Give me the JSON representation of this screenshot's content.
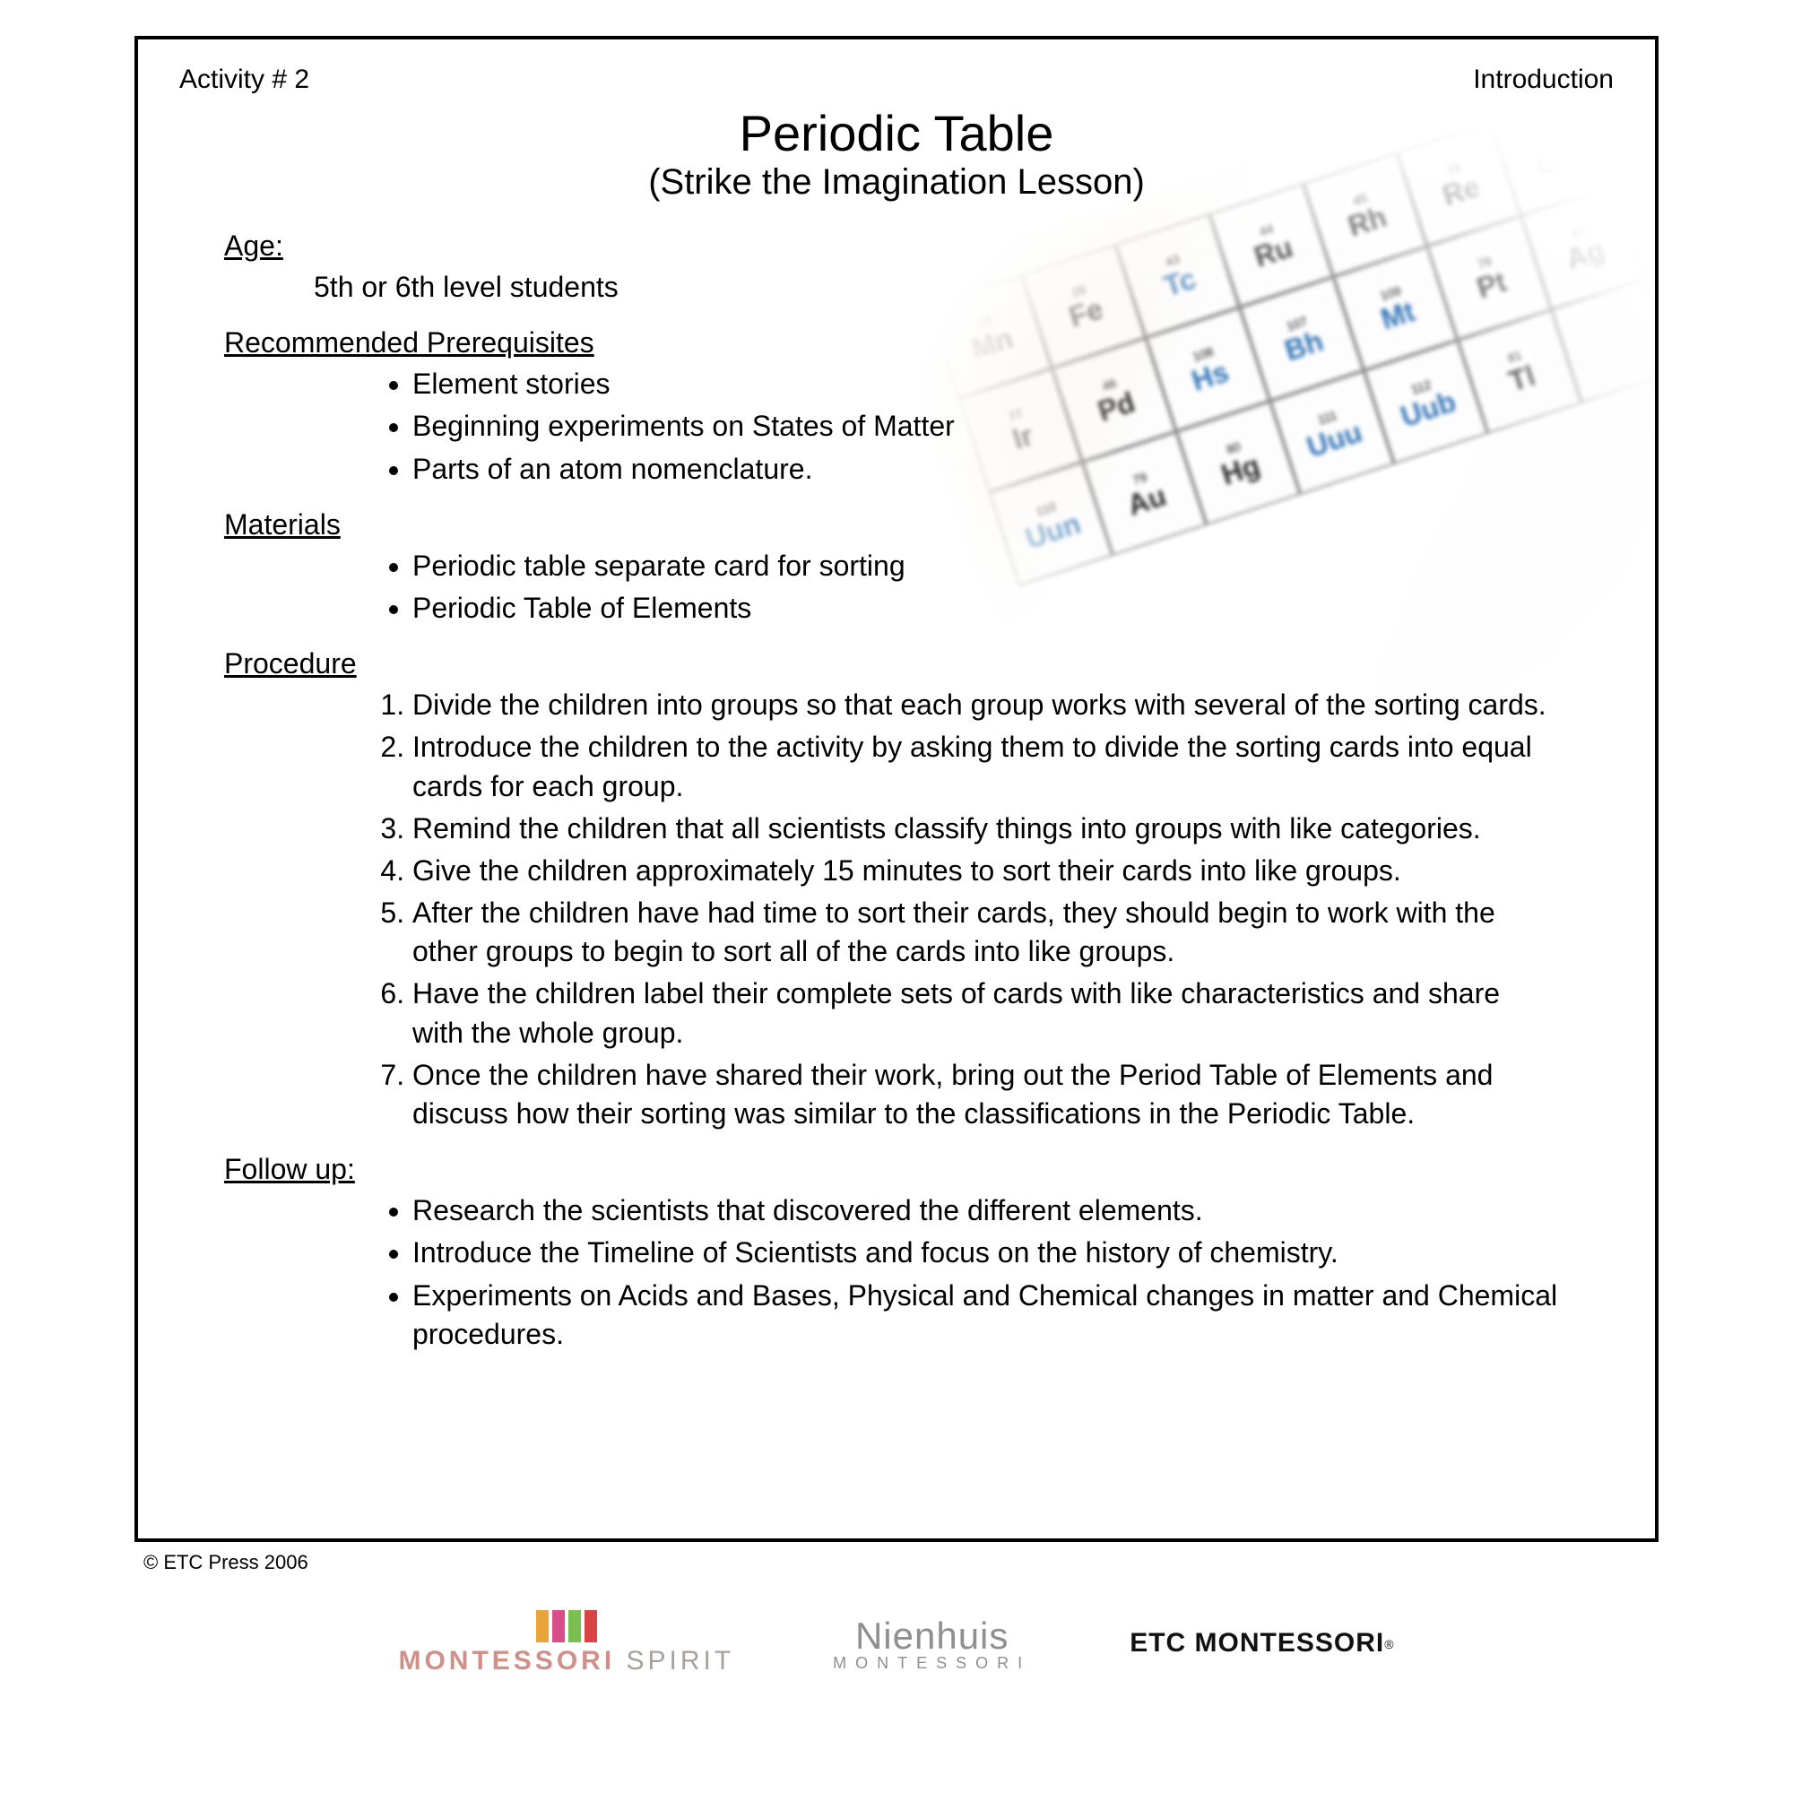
{
  "header": {
    "left": "Activity # 2",
    "right": "Introduction"
  },
  "title": {
    "main": "Periodic Table",
    "sub": "(Strike the Imagination Lesson)"
  },
  "age": {
    "heading": "Age:",
    "text": "5th or 6th level students"
  },
  "prereq": {
    "heading": "Recommended Prerequisites",
    "items": [
      "Element stories",
      "Beginning experiments on States of Matter",
      "Parts of an atom nomenclature."
    ]
  },
  "materials": {
    "heading": "Materials",
    "items": [
      "Periodic table separate card for sorting",
      "Periodic Table of Elements"
    ]
  },
  "procedure": {
    "heading": "Procedure",
    "steps": [
      "Divide the children into groups so that each group works with several of the sorting cards.",
      "Introduce the children to the activity by asking them to divide the sorting cards into equal cards for each group.",
      "Remind the children that all scientists classify things into groups with like categories.",
      "Give the children approximately 15 minutes to sort their cards into like groups.",
      "After the children have had time to sort their cards, they should begin to work with the other groups to begin to sort all of the cards into like groups.",
      "Have the children label their complete sets of cards with like characteristics and share with the whole group.",
      "Once the children have shared their work, bring out the Period Table of Elements and discuss how their sorting was similar to the classifications in the Periodic Table."
    ]
  },
  "followup": {
    "heading": "Follow up:",
    "items": [
      "Research the scientists that discovered the different elements.",
      "Introduce the Timeline of Scientists and focus on the history of chemistry.",
      "Experiments on Acids and Bases, Physical and Chemical changes in matter and Chemical procedures."
    ]
  },
  "copyright": "© ETC Press 2006",
  "illustration": {
    "cells": [
      {
        "num": "25",
        "sym": "Mn",
        "tone": "dark"
      },
      {
        "num": "26",
        "sym": "Fe",
        "tone": "dark"
      },
      {
        "num": "43",
        "sym": "Tc",
        "tone": "blue"
      },
      {
        "num": "44",
        "sym": "Ru",
        "tone": "dark"
      },
      {
        "num": "45",
        "sym": "Rh",
        "tone": "dark"
      },
      {
        "num": "75",
        "sym": "Re",
        "tone": "dark"
      },
      {
        "num": "76",
        "sym": "Os",
        "tone": "dark"
      },
      {
        "num": "77",
        "sym": "Ir",
        "tone": "dark"
      },
      {
        "num": "46",
        "sym": "Pd",
        "tone": "dark"
      },
      {
        "num": "108",
        "sym": "Hs",
        "tone": "blue"
      },
      {
        "num": "107",
        "sym": "Bh",
        "tone": "blue"
      },
      {
        "num": "109",
        "sym": "Mt",
        "tone": "blue"
      },
      {
        "num": "78",
        "sym": "Pt",
        "tone": "dark"
      },
      {
        "num": "47",
        "sym": "Ag",
        "tone": "dark"
      },
      {
        "num": "110",
        "sym": "Uun",
        "tone": "blue"
      },
      {
        "num": "79",
        "sym": "Au",
        "tone": "dark"
      },
      {
        "num": "80",
        "sym": "Hg",
        "tone": "dark"
      },
      {
        "num": "111",
        "sym": "Uuu",
        "tone": "blue"
      },
      {
        "num": "112",
        "sym": "Uub",
        "tone": "blue"
      },
      {
        "num": "81",
        "sym": "Tl",
        "tone": "dark"
      },
      {
        "num": "",
        "sym": "",
        "tone": "dark"
      }
    ]
  },
  "logos": {
    "montessori_spirit": {
      "word1": "MONTESSORI",
      "word2": " SPIRIT"
    },
    "nienhuis": {
      "main": "Nienhuis",
      "sub": "MONTESSORI"
    },
    "etc": "ETC MONTESSORI"
  },
  "style": {
    "border_color": "#000000",
    "body_font_size": 32,
    "title_font_size": 56,
    "subtitle_font_size": 40,
    "blue_hex": "#2a6fb5"
  }
}
